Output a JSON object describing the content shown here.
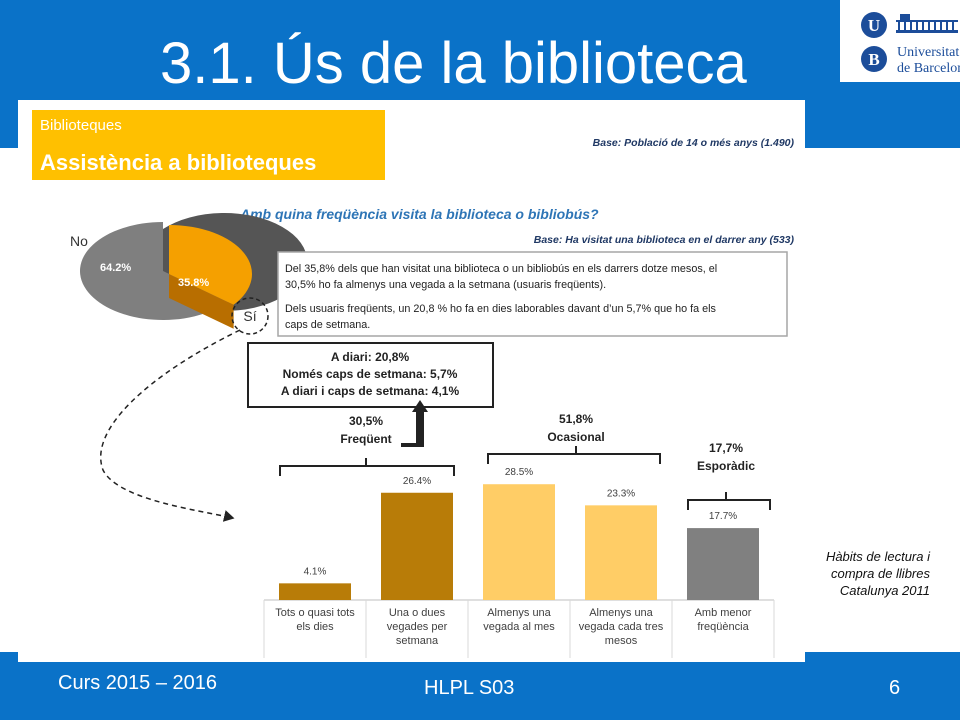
{
  "slide": {
    "title": "3.1. Ús de la biblioteca",
    "footer_left": "Curs 2015 – 2016",
    "footer_center": "HLPL S03",
    "page_number": "6",
    "caption": "Hàbits de lectura i compra de llibres Catalunya 2011",
    "colors": {
      "blue": "#0a72c8",
      "logo_blue": "#1c4d9a",
      "header_yellow": "#ffc000"
    }
  },
  "logo": {
    "letter_u": "U",
    "letter_b": "B",
    "line1": "Universitat",
    "line2": "de Barcelona"
  },
  "figure": {
    "header_small": "Biblioteques",
    "header_big": "Assistència a biblioteques",
    "base1": "Base: Població de 14 o més anys (1.490)",
    "question": "Amb quina freqüència visita la biblioteca o bibliobús?",
    "base2": "Base: Ha visitat una biblioteca en el darrer any (533)",
    "text_lines": [
      "Del 35,8% dels que han visitat una biblioteca o un bibliobús en els darrers dotze mesos, el",
      "30,5% ho fa almenys una vegada a la setmana (usuaris freqüents).",
      "Dels usuaris freqüents, un 20,8 % ho fa en dies laborables davant d’un 5,7% que ho fa els",
      "caps de setmana."
    ],
    "detail_lines": [
      "A diari: 20,8%",
      "Només caps de setmana: 5,7%",
      "A diari i caps de setmana: 4,1%"
    ],
    "groups": [
      {
        "pct": "30,5%",
        "label": "Freqüent"
      },
      {
        "pct": "51,8%",
        "label": "Ocasional"
      },
      {
        "pct": "17,7%",
        "label": "Esporàdic"
      }
    ],
    "pie_no_label": "No",
    "pie_si_label": "Sí"
  },
  "chart_data": [
    {
      "type": "pie",
      "title": "",
      "categories": [
        "No",
        "Sí"
      ],
      "values": [
        64.2,
        35.8
      ],
      "value_labels": [
        "64.2%",
        "35.8%"
      ],
      "colors": [
        "#808080",
        "#f5a000"
      ]
    },
    {
      "type": "bar",
      "title": "Amb quina freqüència visita la biblioteca o bibliobús?",
      "categories": [
        [
          "Tots o quasi tots",
          "els dies"
        ],
        [
          "Una o dues",
          "vegades per",
          "setmana"
        ],
        [
          "Almenys una",
          "vegada al mes"
        ],
        [
          "Almenys una",
          "vegada cada tres",
          "mesos"
        ],
        [
          "Amb menor",
          "freqüència"
        ]
      ],
      "values": [
        4.1,
        26.4,
        28.5,
        23.3,
        17.7
      ],
      "value_labels": [
        "4.1%",
        "26.4%",
        "28.5%",
        "23.3%",
        "17.7%"
      ],
      "colors": [
        "#b87c08",
        "#b87c08",
        "#ffcd66",
        "#ffcd66",
        "#808080"
      ],
      "ylim": [
        0,
        32
      ],
      "xlabel": "",
      "ylabel": ""
    }
  ]
}
